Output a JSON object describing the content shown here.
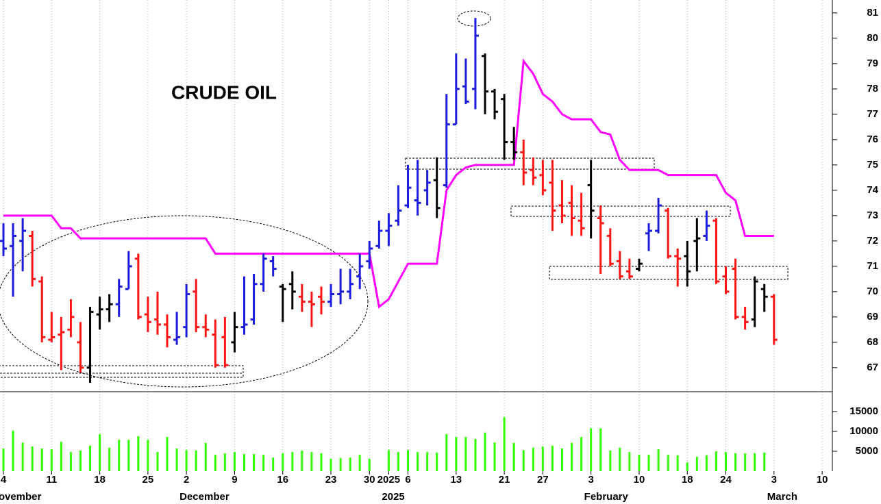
{
  "chart_data": {
    "type": "ohlc",
    "title": "CRUDE OIL",
    "categories": [
      "4",
      null,
      null,
      null,
      null,
      "11",
      null,
      null,
      null,
      null,
      "18",
      null,
      null,
      null,
      null,
      "25",
      null,
      null,
      null,
      "2",
      null,
      null,
      null,
      null,
      "9",
      null,
      null,
      null,
      null,
      "16",
      null,
      null,
      null,
      null,
      "23",
      null,
      null,
      null,
      "30",
      null,
      "2025",
      null,
      "6",
      null,
      null,
      null,
      null,
      "13",
      null,
      null,
      null,
      null,
      "21",
      null,
      null,
      null,
      "27",
      null,
      null,
      null,
      null,
      "3",
      null,
      null,
      null,
      null,
      "10",
      null,
      null,
      null,
      null,
      "18",
      null,
      null,
      null,
      "24",
      null,
      null,
      null,
      null,
      "3",
      null,
      null,
      null,
      null,
      "10"
    ],
    "month_labels": [
      {
        "label": "November",
        "at": 0
      },
      {
        "label": "December",
        "at": 19
      },
      {
        "label": "2025",
        "at": 40
      },
      {
        "label": "February",
        "at": 61
      },
      {
        "label": "March",
        "at": 80
      }
    ],
    "ylim": [
      66.05,
      81.51
    ],
    "yticks": [
      67,
      68,
      69,
      70,
      71,
      72,
      73,
      74,
      75,
      76,
      77,
      78,
      79,
      80,
      81
    ],
    "grid": true,
    "ohlc": {
      "open": [
        72.0,
        71.8,
        72.0,
        72.2,
        70.4,
        68.1,
        68.3,
        68.5,
        68.0,
        67.0,
        69.1,
        69.3,
        69.5,
        70.1,
        71.3,
        69.1,
        68.9,
        68.7,
        68.1,
        68.6,
        70.0,
        68.6,
        68.3,
        68.2,
        68.0,
        68.6,
        68.9,
        70.3,
        71.2,
        70.2,
        70.3,
        69.8,
        69.6,
        69.8,
        69.6,
        69.9,
        70.0,
        70.6,
        71.2,
        71.8,
        72.4,
        72.8,
        73.4,
        73.6,
        74.0,
        74.4,
        74.2,
        76.6,
        78.1,
        78.0,
        79.3,
        77.9,
        77.6,
        75.9,
        75.5,
        74.8,
        74.6,
        74.3,
        73.4,
        73.5,
        72.8,
        74.2,
        72.9,
        72.2,
        71.2,
        70.8,
        70.9,
        72.3,
        72.4,
        73.2,
        71.4,
        71.4,
        72.0,
        72.2,
        72.8,
        70.6,
        70.9,
        69.0,
        68.9,
        70.1,
        69.8,
        null,
        null,
        null,
        null,
        null
      ],
      "high": [
        72.7,
        72.7,
        72.9,
        72.4,
        70.6,
        69.2,
        69.0,
        69.7,
        68.8,
        69.4,
        69.8,
        69.9,
        70.5,
        71.6,
        71.5,
        69.8,
        70.0,
        69.1,
        69.2,
        70.3,
        70.5,
        69.1,
        68.9,
        69.0,
        69.2,
        70.6,
        70.7,
        71.5,
        71.4,
        70.3,
        70.8,
        70.3,
        70.0,
        70.2,
        70.3,
        70.9,
        70.9,
        71.5,
        72.0,
        72.8,
        73.1,
        74.2,
        75.0,
        75.2,
        74.8,
        75.3,
        77.8,
        79.4,
        79.2,
        80.8,
        79.4,
        78.0,
        77.8,
        76.5,
        76.0,
        75.3,
        75.2,
        75.2,
        74.4,
        74.2,
        73.9,
        75.2,
        73.4,
        72.5,
        71.6,
        71.3,
        71.3,
        72.7,
        73.7,
        73.3,
        71.7,
        72.0,
        72.9,
        73.2,
        72.9,
        71.0,
        71.3,
        69.4,
        70.6,
        70.3,
        69.9,
        null,
        null,
        null,
        null,
        null
      ],
      "low": [
        71.4,
        69.8,
        70.8,
        70.2,
        68.0,
        68.0,
        66.9,
        68.2,
        66.8,
        66.4,
        68.5,
        68.8,
        69.0,
        70.1,
        68.9,
        68.4,
        68.3,
        67.8,
        67.9,
        68.2,
        68.4,
        68.2,
        67.0,
        67.0,
        67.6,
        68.3,
        68.7,
        70.0,
        70.6,
        68.8,
        69.3,
        69.2,
        68.6,
        69.1,
        69.4,
        69.5,
        69.7,
        70.1,
        70.9,
        71.7,
        71.8,
        72.6,
        73.3,
        73.0,
        73.4,
        72.9,
        74.1,
        76.6,
        77.4,
        77.2,
        77.0,
        76.8,
        75.2,
        75.2,
        74.2,
        74.2,
        73.8,
        72.4,
        72.7,
        72.2,
        72.2,
        72.1,
        70.7,
        71.0,
        70.5,
        70.5,
        70.8,
        71.6,
        72.3,
        71.3,
        70.2,
        70.2,
        70.8,
        72.0,
        70.3,
        69.9,
        68.9,
        68.5,
        68.6,
        69.2,
        67.9,
        null,
        null,
        null,
        null,
        null
      ],
      "close": [
        71.7,
        72.2,
        72.4,
        70.5,
        68.2,
        68.2,
        68.4,
        69.0,
        67.0,
        69.2,
        69.3,
        69.5,
        70.2,
        71.0,
        69.0,
        68.8,
        68.7,
        68.2,
        68.2,
        69.9,
        68.6,
        68.5,
        67.1,
        67.1,
        68.6,
        68.7,
        70.3,
        71.3,
        70.9,
        70.1,
        70.0,
        69.6,
        69.5,
        69.6,
        69.9,
        70.0,
        70.3,
        71.0,
        71.7,
        72.4,
        72.6,
        73.2,
        74.1,
        73.5,
        74.3,
        73.3,
        76.6,
        78.0,
        77.5,
        80.1,
        77.9,
        77.1,
        75.9,
        75.5,
        74.7,
        74.5,
        74.0,
        73.2,
        73.0,
        72.9,
        72.5,
        73.2,
        72.7,
        71.1,
        70.6,
        70.6,
        71.1,
        72.4,
        73.4,
        71.4,
        71.3,
        70.8,
        72.1,
        72.6,
        70.4,
        70.0,
        69.0,
        68.8,
        70.4,
        69.8,
        68.1,
        null,
        null,
        null,
        null,
        null
      ],
      "colors": [
        "#1c1cdc",
        "#1c1cdc",
        "#1c1cdc",
        "#ff1414",
        "#ff1414",
        "#ff1414",
        "#ff1414",
        "#ff1414",
        "#ff1414",
        "#000000",
        "#000000",
        "#000000",
        "#1c1cdc",
        "#1c1cdc",
        "#ff1414",
        "#ff1414",
        "#ff1414",
        "#ff1414",
        "#1c1cdc",
        "#1c1cdc",
        "#ff1414",
        "#ff1414",
        "#ff1414",
        "#ff1414",
        "#000000",
        "#1c1cdc",
        "#1c1cdc",
        "#1c1cdc",
        "#1c1cdc",
        "#000000",
        "#000000",
        "#ff1414",
        "#ff1414",
        "#ff1414",
        "#1c1cdc",
        "#1c1cdc",
        "#1c1cdc",
        "#1c1cdc",
        "#1c1cdc",
        "#1c1cdc",
        "#1c1cdc",
        "#1c1cdc",
        "#1c1cdc",
        "#1c1cdc",
        "#1c1cdc",
        "#000000",
        "#1c1cdc",
        "#1c1cdc",
        "#1c1cdc",
        "#1c1cdc",
        "#000000",
        "#000000",
        "#000000",
        "#000000",
        "#ff1414",
        "#ff1414",
        "#ff1414",
        "#ff1414",
        "#ff1414",
        "#ff1414",
        "#ff1414",
        "#000000",
        "#ff1414",
        "#ff1414",
        "#ff1414",
        "#ff1414",
        "#000000",
        "#1c1cdc",
        "#1c1cdc",
        "#ff1414",
        "#ff1414",
        "#000000",
        "#000000",
        "#1c1cdc",
        "#ff1414",
        "#ff1414",
        "#ff1414",
        "#ff1414",
        "#000000",
        "#000000",
        "#ff1414",
        null,
        null,
        null,
        null,
        null
      ]
    },
    "channel": {
      "color": "#ff00ff",
      "values": [
        73.0,
        73.0,
        73.0,
        73.0,
        73.0,
        73.0,
        72.5,
        72.5,
        72.1,
        72.1,
        72.1,
        72.1,
        72.1,
        72.1,
        72.1,
        72.1,
        72.1,
        72.1,
        72.1,
        72.1,
        72.1,
        72.1,
        71.5,
        71.5,
        71.5,
        71.5,
        71.5,
        71.5,
        71.5,
        71.5,
        71.5,
        71.5,
        71.5,
        71.5,
        71.5,
        71.5,
        71.5,
        71.5,
        71.5,
        69.4,
        69.7,
        70.4,
        71.1,
        71.1,
        71.1,
        71.1,
        74.0,
        74.6,
        74.9,
        75.0,
        75.0,
        75.0,
        75.0,
        75.0,
        79.1,
        78.6,
        77.8,
        77.5,
        77.0,
        76.8,
        76.8,
        76.8,
        76.3,
        76.2,
        75.2,
        74.8,
        74.8,
        74.8,
        74.8,
        74.6,
        74.6,
        74.6,
        74.6,
        74.6,
        74.6,
        73.9,
        73.6,
        72.2,
        72.2,
        72.2,
        72.2,
        null,
        null,
        null,
        null,
        null
      ]
    },
    "volume": {
      "color": "#33ff00",
      "ylim": [
        0,
        20000
      ],
      "yticks": [
        5000,
        10000,
        15000
      ],
      "values": [
        5700,
        10200,
        7200,
        6200,
        5700,
        5500,
        7400,
        4800,
        5200,
        6400,
        9300,
        5900,
        7900,
        7900,
        8800,
        7900,
        4800,
        8600,
        5700,
        5300,
        5200,
        7100,
        4100,
        4500,
        4800,
        4300,
        4300,
        4100,
        3400,
        4500,
        4800,
        5200,
        4800,
        4500,
        3100,
        3300,
        3400,
        4100,
        3100,
        null,
        5300,
        4800,
        5300,
        4800,
        4800,
        4700,
        9300,
        8600,
        8600,
        8100,
        9700,
        7200,
        13600,
        7100,
        5300,
        5900,
        6200,
        6400,
        5700,
        7100,
        8600,
        10800,
        10800,
        5200,
        5900,
        4800,
        4100,
        4100,
        5500,
        4100,
        4000,
        2200,
        3600,
        4000,
        5000,
        4800,
        4500,
        4500,
        4500,
        4700,
        null,
        null,
        null,
        null,
        null,
        null
      ]
    }
  }
}
